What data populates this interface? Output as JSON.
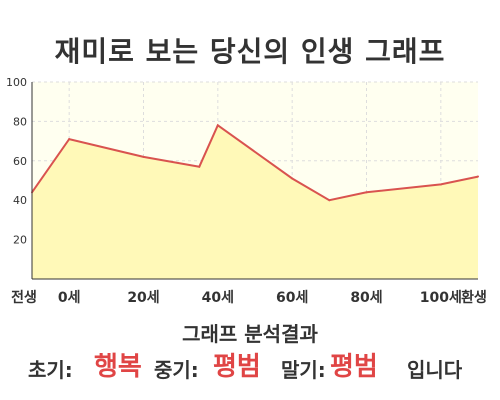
{
  "title": "재미로 보는 당신의 인생 그래프",
  "chart_data": {
    "type": "area",
    "title": "재미로 보는 당신의 인생 그래프",
    "x": [
      -10,
      0,
      20,
      35,
      40,
      60,
      70,
      80,
      100,
      110
    ],
    "values": [
      44,
      71,
      62,
      57,
      78,
      51,
      40,
      44,
      48,
      52
    ],
    "xlim": [
      -10,
      110
    ],
    "ylim": [
      0,
      100
    ],
    "x_tick_labels": [
      {
        "x": -10,
        "label": "전생"
      },
      {
        "x": 0,
        "label": "0세"
      },
      {
        "x": 20,
        "label": "20세"
      },
      {
        "x": 40,
        "label": "40세"
      },
      {
        "x": 60,
        "label": "60세"
      },
      {
        "x": 80,
        "label": "80세"
      },
      {
        "x": 100,
        "label": "100세"
      },
      {
        "x": 110,
        "label": "환생"
      }
    ],
    "y_tick_labels": [
      {
        "y": 20,
        "label": "20"
      },
      {
        "y": 40,
        "label": "40"
      },
      {
        "y": 60,
        "label": "60"
      },
      {
        "y": 80,
        "label": "80"
      },
      {
        "y": 100,
        "label": "100"
      }
    ],
    "grid": true,
    "line_color": "#d9534f",
    "fill_color": "#fff9b8",
    "plot_background": "#fffff0"
  },
  "result": {
    "title": "그래프 분석결과",
    "early_label": "초기:",
    "early_value": "행복",
    "middle_label": "중기:",
    "middle_value": "평범",
    "late_label": "말기:",
    "late_value": "평범",
    "suffix": "입니다"
  },
  "colors": {
    "result_value": "#e04545",
    "text": "#333333",
    "axis": "#333333",
    "grid": "#dddddd"
  }
}
